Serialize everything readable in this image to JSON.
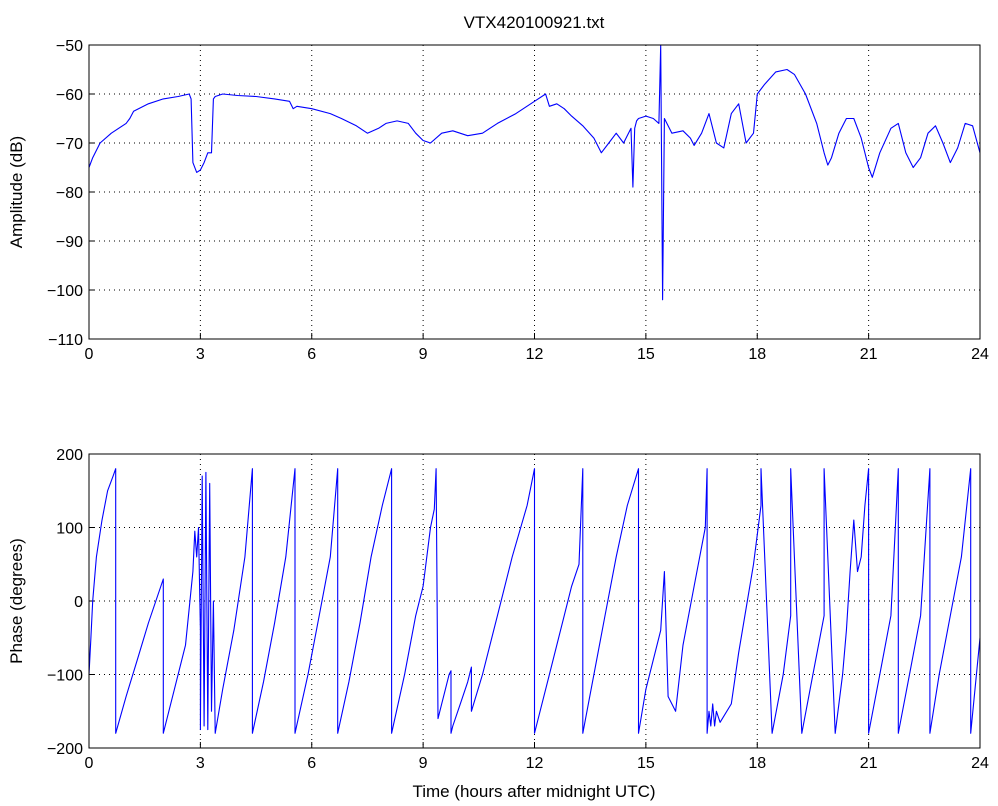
{
  "chart_data": [
    {
      "type": "line",
      "title": "VTX420100921.txt",
      "xlabel": "",
      "ylabel": "Amplitude (dB)",
      "xlim": [
        0,
        24
      ],
      "ylim": [
        -110,
        -50
      ],
      "xticks": [
        0,
        3,
        6,
        9,
        12,
        15,
        18,
        21,
        24
      ],
      "yticks": [
        -110,
        -100,
        -90,
        -80,
        -70,
        -60,
        -50
      ],
      "grid": true,
      "series": [
        {
          "color": "#0000ff",
          "x": [
            0,
            0.1,
            0.3,
            0.6,
            1.0,
            1.1,
            1.2,
            1.6,
            2.0,
            2.4,
            2.7,
            2.75,
            2.8,
            2.9,
            3.0,
            3.1,
            3.2,
            3.3,
            3.35,
            3.4,
            3.6,
            4.0,
            4.5,
            5.0,
            5.4,
            5.5,
            5.6,
            6.0,
            6.5,
            6.8,
            7.2,
            7.5,
            7.8,
            8.0,
            8.3,
            8.6,
            8.8,
            9.0,
            9.2,
            9.5,
            9.8,
            10.2,
            10.6,
            11.0,
            11.5,
            12.0,
            12.3,
            12.4,
            12.6,
            12.8,
            13.0,
            13.3,
            13.6,
            13.8,
            14.0,
            14.2,
            14.4,
            14.6,
            14.65,
            14.7,
            14.75,
            14.8,
            15.0,
            15.2,
            15.35,
            15.4,
            15.45,
            15.5,
            15.7,
            16.0,
            16.2,
            16.3,
            16.5,
            16.7,
            16.9,
            17.1,
            17.3,
            17.5,
            17.7,
            17.9,
            18.0,
            18.2,
            18.5,
            18.8,
            19.0,
            19.3,
            19.6,
            19.8,
            19.9,
            20.0,
            20.2,
            20.4,
            20.6,
            20.8,
            21.0,
            21.1,
            21.3,
            21.6,
            21.8,
            22.0,
            22.2,
            22.4,
            22.6,
            22.8,
            23.0,
            23.2,
            23.4,
            23.6,
            23.8,
            24.0
          ],
          "y": [
            -75,
            -73,
            -70,
            -68,
            -66,
            -65,
            -63.5,
            -62,
            -61,
            -60.5,
            -60,
            -61,
            -74,
            -76,
            -75.5,
            -74,
            -72,
            -72,
            -61,
            -60.5,
            -60,
            -60.3,
            -60.5,
            -61,
            -61.5,
            -63,
            -62.5,
            -63,
            -64,
            -65,
            -66.5,
            -68,
            -67,
            -66,
            -65.5,
            -66,
            -68,
            -69.5,
            -70,
            -68,
            -67.5,
            -68.5,
            -68,
            -66,
            -64,
            -61.5,
            -60,
            -62.5,
            -62,
            -63,
            -64.5,
            -66.5,
            -69,
            -72,
            -70,
            -68,
            -70,
            -67,
            -79,
            -67,
            -65.5,
            -65,
            -64.5,
            -65,
            -66,
            -50,
            -102,
            -65,
            -68,
            -67.5,
            -69,
            -70.5,
            -68,
            -64,
            -70,
            -71,
            -64,
            -62,
            -70,
            -68,
            -60,
            -58,
            -55.5,
            -55,
            -56,
            -60,
            -66,
            -72,
            -74.5,
            -73,
            -68,
            -65,
            -65,
            -69,
            -75,
            -77,
            -72,
            -67,
            -66,
            -72,
            -75,
            -73,
            -68,
            -66.5,
            -70,
            -74,
            -71,
            -66,
            -66.5,
            -72
          ]
        }
      ]
    },
    {
      "type": "line",
      "title": "",
      "xlabel": "Time (hours after midnight UTC)",
      "ylabel": "Phase (degrees)",
      "xlim": [
        0,
        24
      ],
      "ylim": [
        -200,
        200
      ],
      "xticks": [
        0,
        3,
        6,
        9,
        12,
        15,
        18,
        21,
        24
      ],
      "yticks": [
        -200,
        -100,
        0,
        100,
        200
      ],
      "grid": true,
      "series": [
        {
          "color": "#0000ff",
          "x": [
            0,
            0.05,
            0.1,
            0.2,
            0.35,
            0.5,
            0.65,
            0.72,
            0.72,
            1.0,
            1.3,
            1.6,
            2.0,
            2.0,
            2.3,
            2.6,
            2.8,
            2.85,
            2.9,
            2.95,
            3.0,
            3.0,
            3.05,
            3.1,
            3.15,
            3.2,
            3.25,
            3.3,
            3.35,
            3.4,
            3.6,
            3.9,
            4.2,
            4.4,
            4.4,
            4.7,
            5.0,
            5.3,
            5.55,
            5.55,
            5.9,
            6.2,
            6.5,
            6.7,
            6.7,
            7.0,
            7.3,
            7.6,
            7.9,
            8.15,
            8.15,
            8.5,
            8.8,
            9.0,
            9.1,
            9.2,
            9.3,
            9.35,
            9.4,
            9.5,
            9.6,
            9.7,
            9.75,
            9.75,
            9.8,
            10.0,
            10.2,
            10.3,
            10.3,
            10.6,
            11.0,
            11.4,
            11.8,
            12.0,
            12.0,
            12.4,
            12.8,
            13.0,
            13.2,
            13.3,
            13.3,
            13.6,
            13.9,
            14.2,
            14.5,
            14.8,
            14.8,
            15.0,
            15.2,
            15.4,
            15.5,
            15.6,
            15.8,
            16.0,
            16.3,
            16.6,
            16.65,
            16.65,
            16.7,
            16.75,
            16.8,
            16.85,
            16.9,
            17.0,
            17.3,
            17.5,
            17.7,
            17.9,
            18.1,
            18.1,
            18.4,
            18.7,
            18.9,
            18.9,
            19.2,
            19.5,
            19.8,
            19.8,
            20.1,
            20.3,
            20.4,
            20.5,
            20.6,
            20.7,
            20.8,
            20.9,
            21.0,
            21.0,
            21.3,
            21.6,
            21.8,
            21.8,
            22.1,
            22.4,
            22.65,
            22.65,
            22.9,
            23.2,
            23.5,
            23.75,
            23.75,
            24.0
          ],
          "y": [
            -100,
            -50,
            0,
            60,
            110,
            150,
            170,
            180,
            -180,
            -130,
            -80,
            -30,
            30,
            -180,
            -120,
            -60,
            40,
            95,
            60,
            100,
            -40,
            -175,
            170,
            -170,
            175,
            -175,
            160,
            -150,
            0,
            -180,
            -120,
            -40,
            60,
            180,
            -180,
            -110,
            -30,
            60,
            180,
            -180,
            -100,
            -20,
            60,
            180,
            -180,
            -110,
            -30,
            60,
            130,
            180,
            -180,
            -100,
            -20,
            20,
            60,
            100,
            125,
            180,
            -160,
            -140,
            -120,
            -100,
            -95,
            -180,
            -170,
            -140,
            -110,
            -90,
            -150,
            -100,
            -20,
            60,
            130,
            180,
            -180,
            -100,
            -20,
            20,
            50,
            180,
            -180,
            -100,
            -20,
            60,
            130,
            180,
            -180,
            -120,
            -80,
            -40,
            40,
            -130,
            -150,
            -60,
            20,
            100,
            180,
            -180,
            -150,
            -170,
            -140,
            -170,
            -150,
            -165,
            -140,
            -70,
            -10,
            50,
            130,
            180,
            -180,
            -100,
            -20,
            180,
            -180,
            -100,
            -20,
            180,
            -180,
            -100,
            -40,
            40,
            110,
            40,
            60,
            130,
            180,
            -180,
            -100,
            -20,
            180,
            -180,
            -100,
            -20,
            180,
            -180,
            -100,
            -20,
            60,
            180,
            -180,
            -50
          ]
        }
      ]
    }
  ]
}
